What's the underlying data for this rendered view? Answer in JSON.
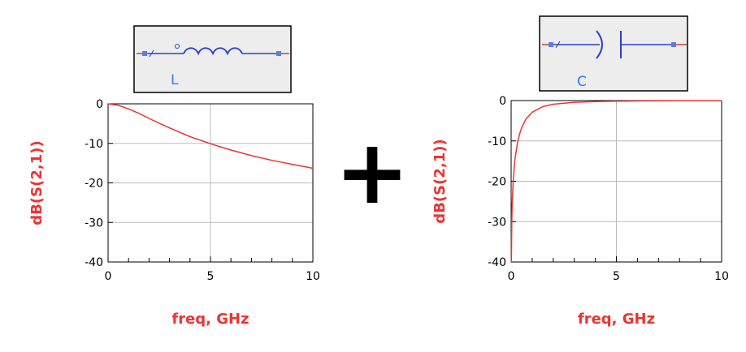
{
  "components": {
    "inductor": {
      "label": "L"
    },
    "capacitor": {
      "label": "C"
    }
  },
  "operator": "+",
  "colors": {
    "curve": "#ee3333",
    "axis_title": "#ee3333",
    "component_label": "#3377ff",
    "component_wire": "#2a3fcc",
    "component_lead": "#d04040",
    "grid": "#bbbbbb",
    "frame": "#000000"
  },
  "chart_data": [
    {
      "type": "line",
      "xlabel": "freq, GHz",
      "ylabel": "dB(S(2,1))",
      "xlim": [
        0,
        10
      ],
      "ylim": [
        -40,
        0
      ],
      "xticks": [
        0,
        5,
        10
      ],
      "yticks": [
        0,
        -10,
        -20,
        -30,
        -40
      ],
      "grid": true,
      "series": [
        {
          "x": [
            0,
            0.5,
            1,
            1.5,
            2,
            2.5,
            3,
            3.5,
            4,
            4.5,
            5,
            5.5,
            6,
            6.5,
            7,
            7.5,
            8,
            8.5,
            9,
            9.5,
            10
          ],
          "values": [
            0,
            -0.4,
            -1.3,
            -2.4,
            -3.7,
            -4.9,
            -6.1,
            -7.2,
            -8.3,
            -9.2,
            -10.1,
            -10.9,
            -11.7,
            -12.4,
            -13.1,
            -13.7,
            -14.3,
            -14.8,
            -15.3,
            -15.8,
            -16.3
          ]
        }
      ]
    },
    {
      "type": "line",
      "xlabel": "freq, GHz",
      "ylabel": "dB(S(2,1))",
      "xlim": [
        0,
        10
      ],
      "ylim": [
        -40,
        0
      ],
      "xticks": [
        0,
        5,
        10
      ],
      "yticks": [
        0,
        -10,
        -20,
        -30,
        -40
      ],
      "grid": true,
      "series": [
        {
          "x": [
            0.01,
            0.03,
            0.05,
            0.1,
            0.15,
            0.2,
            0.3,
            0.4,
            0.5,
            0.7,
            1,
            1.5,
            2,
            3,
            4,
            5,
            6,
            7,
            8,
            9,
            10
          ],
          "values": [
            -40,
            -30,
            -25.5,
            -19.6,
            -16.2,
            -13.8,
            -10.5,
            -8.3,
            -6.7,
            -4.6,
            -2.9,
            -1.5,
            -0.9,
            -0.43,
            -0.25,
            -0.16,
            -0.11,
            -0.08,
            -0.06,
            -0.05,
            -0.04
          ]
        }
      ]
    }
  ]
}
